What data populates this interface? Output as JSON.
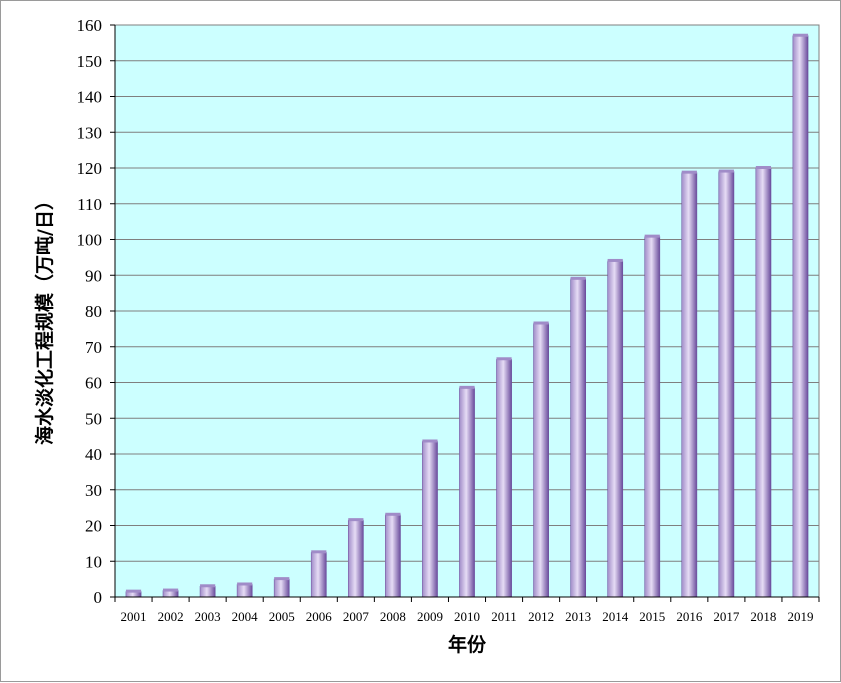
{
  "chart_data": {
    "type": "bar",
    "title": "",
    "xlabel": "年份",
    "ylabel": "海水淡化工程规模（万吨/日）",
    "ylim": [
      0,
      160
    ],
    "ytick_step": 10,
    "grid": true,
    "legend": "none",
    "categories": [
      "2001",
      "2002",
      "2003",
      "2004",
      "2005",
      "2006",
      "2007",
      "2008",
      "2009",
      "2010",
      "2011",
      "2012",
      "2013",
      "2014",
      "2015",
      "2016",
      "2017",
      "2018",
      "2019"
    ],
    "values": [
      1.5,
      1.8,
      3.0,
      3.5,
      5.0,
      12.5,
      21.5,
      23.0,
      43.5,
      58.5,
      66.5,
      76.5,
      89.0,
      94.0,
      100.8,
      118.7,
      119.0,
      120.0,
      157.0
    ],
    "colors": {
      "plot_bg": "#ccffff",
      "grid": "#7f7f7f",
      "bar_light": "#e6dcf5",
      "bar_mid": "#a08cc8",
      "bar_dark": "#6a4c9c"
    }
  }
}
